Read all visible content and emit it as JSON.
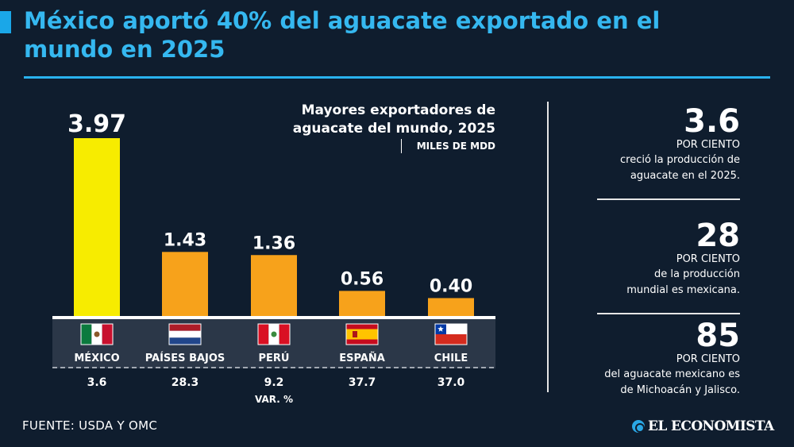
{
  "title": "México aportó 40% del aguacate exportado en el mundo en 2025",
  "chart_heading": "Mayores exportadores de aguacate del mundo, 2025",
  "chart_unit": "MILES DE MDD",
  "var_label": "VAR. %",
  "stats": [
    {
      "value": "3.6",
      "unit": "POR CIENTO",
      "desc1": "creció la producción de",
      "desc2": "aguacate en el 2025."
    },
    {
      "value": "28",
      "unit": "POR CIENTO",
      "desc1": "de la producción",
      "desc2": "mundial es mexicana."
    },
    {
      "value": "85",
      "unit": "POR CIENTO",
      "desc1": "del aguacate mexicano es",
      "desc2": "de Michoacán y Jalisco."
    }
  ],
  "source": "FUENTE: USDA Y OMC",
  "logo": "EL ECONOMISTA",
  "colors": {
    "highlight": "#f7ec00",
    "bar": "#f7a21b",
    "accent": "#35b8f0",
    "background": "#0f1d2e"
  },
  "chart_data": {
    "type": "bar",
    "categories": [
      "MÉXICO",
      "PAÍSES BAJOS",
      "PERÚ",
      "ESPAÑA",
      "CHILE"
    ],
    "values": [
      3.97,
      1.43,
      1.36,
      0.56,
      0.4
    ],
    "value_labels": [
      "3.97",
      "1.43",
      "1.36",
      "0.56",
      "0.40"
    ],
    "var_pct": [
      "3.6",
      "28.3",
      "9.2",
      "37.7",
      "37.0"
    ],
    "flags": [
      "mexico-flag",
      "netherlands-flag",
      "peru-flag",
      "spain-flag",
      "chile-flag"
    ],
    "title": "Mayores exportadores de aguacate del mundo, 2025",
    "ylabel": "MILES DE MDD",
    "ylim": [
      0,
      3.97
    ],
    "grid": false,
    "legend": "none"
  }
}
